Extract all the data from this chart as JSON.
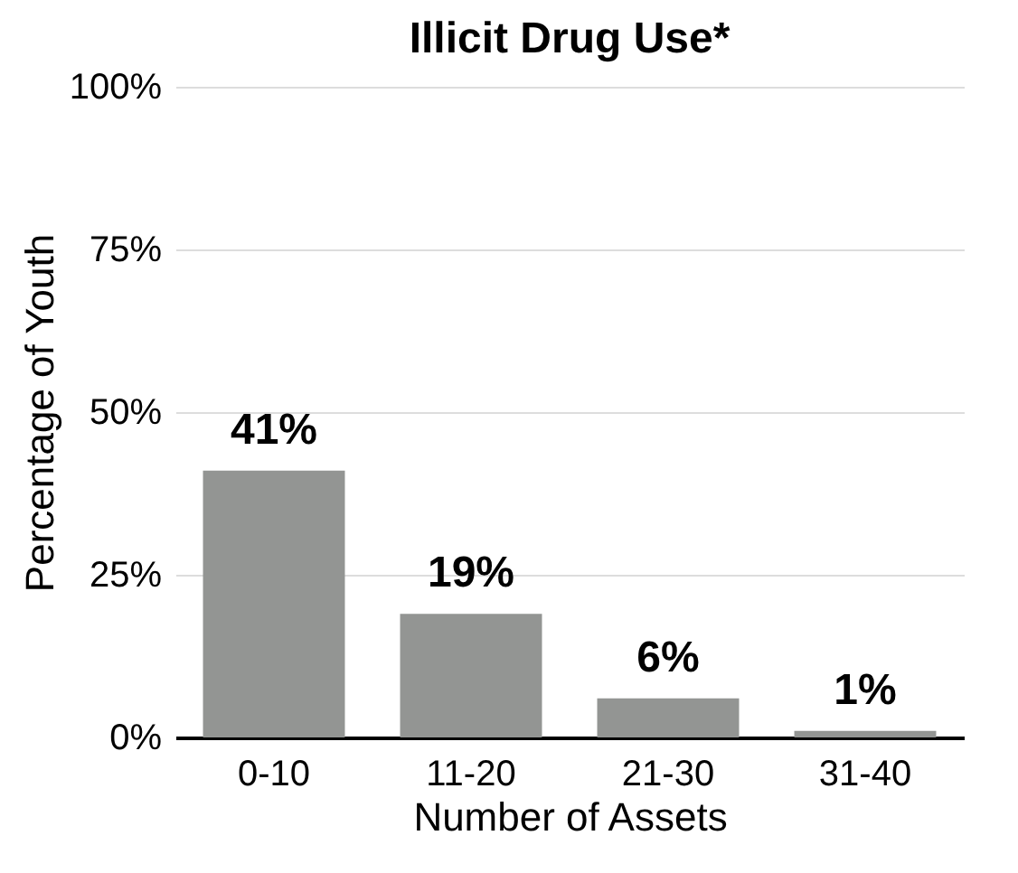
{
  "chart_data": {
    "type": "bar",
    "title": "Illicit Drug Use*",
    "xlabel": "Number of Assets",
    "ylabel": "Percentage of Youth",
    "categories": [
      "0-10",
      "11-20",
      "21-30",
      "31-40"
    ],
    "values": [
      41,
      19,
      6,
      1
    ],
    "value_labels": [
      "41%",
      "19%",
      "6%",
      "1%"
    ],
    "color": "#939593",
    "ylim": [
      0,
      100
    ],
    "yticks": [
      {
        "value": 0,
        "label": "0%"
      },
      {
        "value": 25,
        "label": "25%"
      },
      {
        "value": 50,
        "label": "50%"
      },
      {
        "value": 75,
        "label": "75%"
      },
      {
        "value": 100,
        "label": "100%"
      }
    ],
    "grid": "y"
  }
}
